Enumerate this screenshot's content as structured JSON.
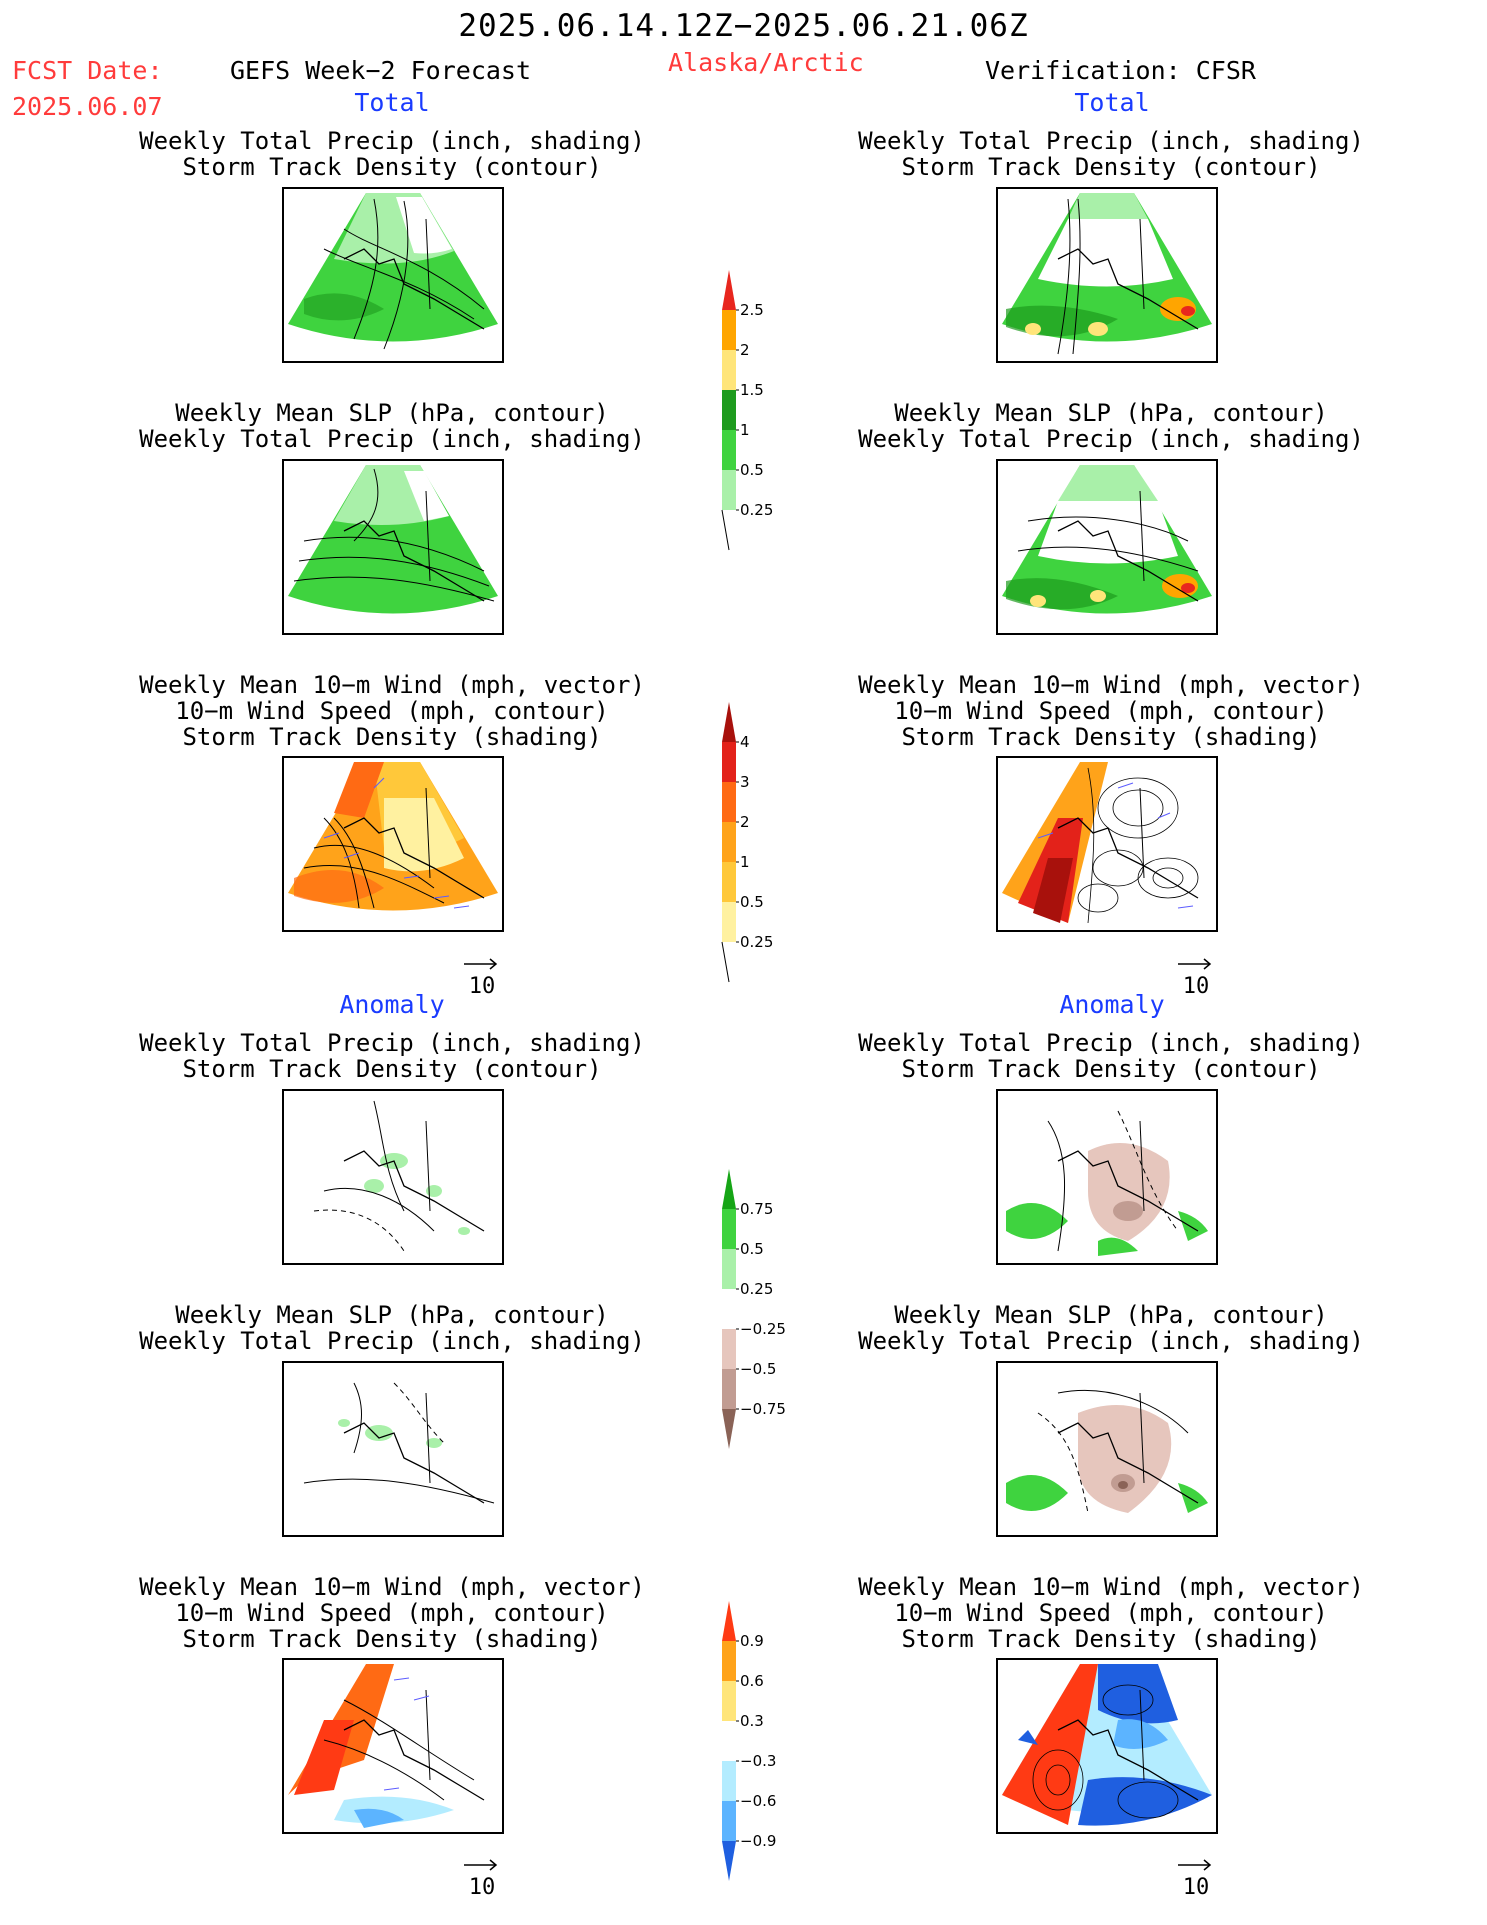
{
  "header": {
    "time_range": "2025.06.14.12Z−2025.06.21.06Z",
    "fcst_label": "FCST Date:",
    "fcst_date": "2025.06.07",
    "product": "GEFS Week−2 Forecast",
    "region": "Alaska/Arctic",
    "verification": "Verification: CFSR"
  },
  "sections": {
    "total": "Total",
    "anomaly": "Anomaly"
  },
  "panel_titles": {
    "precip_storm": [
      "Weekly Total Precip (inch, shading)",
      "Storm Track Density (contour)"
    ],
    "slp_precip": [
      "Weekly Mean SLP (hPa, contour)",
      "Weekly Total Precip (inch, shading)"
    ],
    "wind_storm": [
      "Weekly Mean 10−m Wind (mph, vector)",
      "10−m Wind Speed (mph, contour)",
      "Storm Track Density (shading)"
    ]
  },
  "vector_ref": "10",
  "colorbars": {
    "precip_total": {
      "labels": [
        "2.5",
        "2",
        "1.5",
        "1",
        "0.5",
        "0.25"
      ],
      "colors": [
        "#e8261e",
        "#ffa500",
        "#ffe57a",
        "#1e9b1e",
        "#3fd33f",
        "#a9f0a9"
      ]
    },
    "storm_total": {
      "labels": [
        "4",
        "3",
        "2",
        "1",
        "0.5",
        "0.25"
      ],
      "colors": [
        "#a8110c",
        "#e3221a",
        "#ff6a14",
        "#ffa31a",
        "#ffc83a",
        "#fff1a0"
      ]
    },
    "precip_anom": {
      "labels": [
        "0.75",
        "0.5",
        "0.25",
        "−0.25",
        "−0.5",
        "−0.75"
      ],
      "colors": [
        "#16a516",
        "#3fd33f",
        "#a9f0a9",
        "#ffffff",
        "#e6c6bd",
        "#c19c92",
        "#8a6357"
      ]
    },
    "storm_anom": {
      "labels": [
        "0.9",
        "0.6",
        "0.3",
        "−0.3",
        "−0.6",
        "−0.9"
      ],
      "colors": [
        "#ff3a14",
        "#ffa31a",
        "#ffe57a",
        "#ffffff",
        "#b3ecff",
        "#5cb4ff",
        "#1f5fe0"
      ]
    }
  }
}
